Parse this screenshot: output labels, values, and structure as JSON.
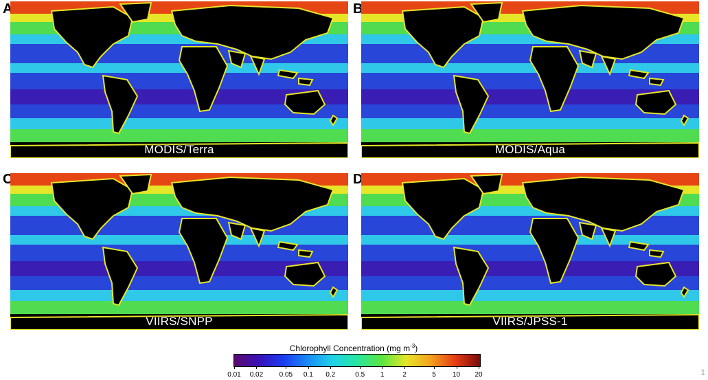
{
  "panels": [
    {
      "letter": "A",
      "label": "MODIS/Terra"
    },
    {
      "letter": "B",
      "label": "MODIS/Aqua"
    },
    {
      "letter": "C",
      "label": "VIIRS/SNPP"
    },
    {
      "letter": "D",
      "label": "VIIRS/JPSS-1"
    }
  ],
  "colorbar": {
    "title": "Chlorophyll Concentration (mg m",
    "unit_exponent": "-3",
    "title_close": ")",
    "ticks": [
      "0.01",
      "0.02",
      "0.05",
      "0.1",
      "0.2",
      "0.5",
      "1",
      "2",
      "5",
      "10",
      "20"
    ],
    "colors": [
      "#5a0a6e",
      "#3a12b8",
      "#1a3cf0",
      "#1a8cf5",
      "#20d2e8",
      "#28e6a0",
      "#5ae640",
      "#e6e628",
      "#f5a01e",
      "#e63c14",
      "#780a0a"
    ]
  },
  "page_number": "1",
  "map_colors": {
    "land": "#000000",
    "oligotrophic": "#2846d8",
    "gyre_core": "#3a1eb4",
    "mesotrophic": "#30c8e8",
    "productive": "#50dc50",
    "bloom": "#e6e628",
    "coastal": "#e64614"
  }
}
